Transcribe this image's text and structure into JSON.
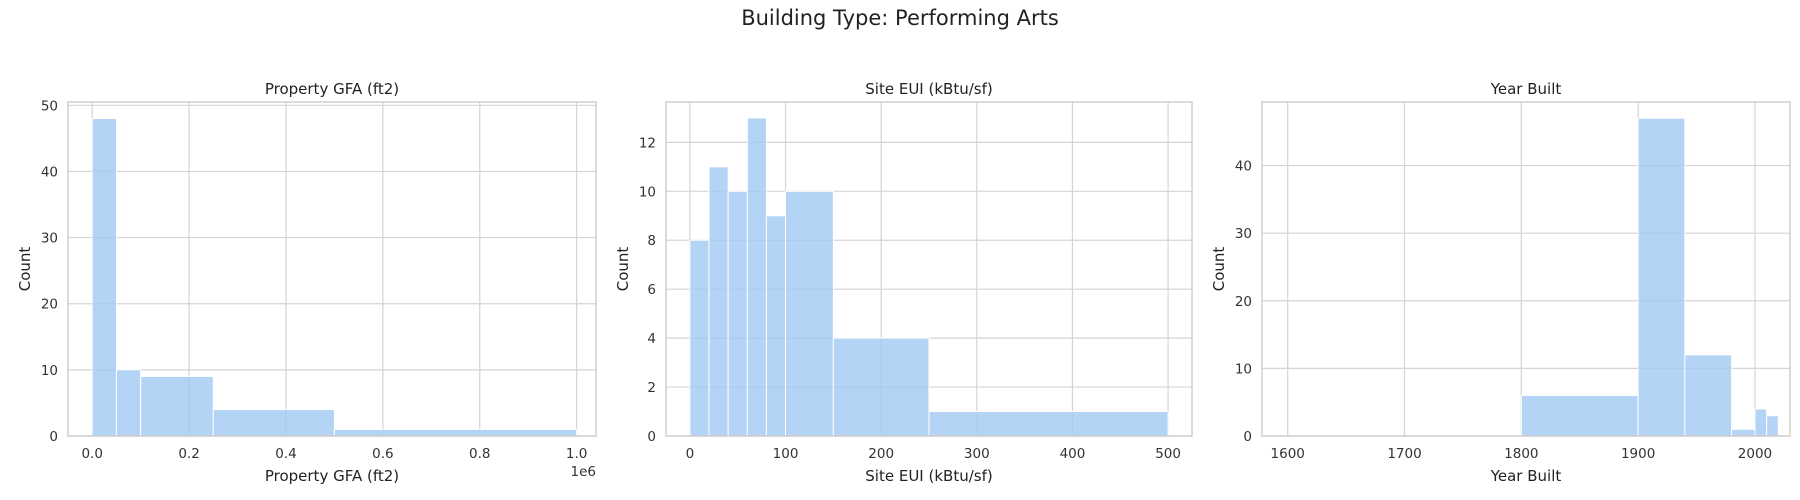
{
  "figure": {
    "title": "Building Type: Performing Arts"
  },
  "chart_data": [
    {
      "type": "bar",
      "subtype": "histogram",
      "title": "Property GFA (ft2)",
      "xlabel": "Property GFA (ft2)",
      "ylabel": "Count",
      "x_offset_label": "1e6",
      "xlim": [
        -0.05,
        1.04
      ],
      "ylim": [
        0,
        50.5
      ],
      "xticks": [
        0.0,
        0.2,
        0.4,
        0.6,
        0.8,
        1.0
      ],
      "xtick_labels": [
        "0.0",
        "0.2",
        "0.4",
        "0.6",
        "0.8",
        "1.0"
      ],
      "yticks": [
        0,
        10,
        20,
        30,
        40,
        50
      ],
      "bins": [
        {
          "x0": 0.0,
          "x1": 0.05,
          "count": 48
        },
        {
          "x0": 0.05,
          "x1": 0.1,
          "count": 10
        },
        {
          "x0": 0.1,
          "x1": 0.25,
          "count": 9
        },
        {
          "x0": 0.25,
          "x1": 0.5,
          "count": 4
        },
        {
          "x0": 0.5,
          "x1": 1.0,
          "count": 1
        }
      ],
      "grid": true,
      "color": "#a1c9f4"
    },
    {
      "type": "bar",
      "subtype": "histogram",
      "title": "Site EUI (kBtu/sf)",
      "xlabel": "Site EUI (kBtu/sf)",
      "ylabel": "Count",
      "xlim": [
        -25,
        525
      ],
      "ylim": [
        0,
        13.65
      ],
      "xticks": [
        0,
        100,
        200,
        300,
        400,
        500
      ],
      "xtick_labels": [
        "0",
        "100",
        "200",
        "300",
        "400",
        "500"
      ],
      "yticks": [
        0,
        2,
        4,
        6,
        8,
        10,
        12
      ],
      "bins": [
        {
          "x0": 0,
          "x1": 20,
          "count": 8
        },
        {
          "x0": 20,
          "x1": 40,
          "count": 11
        },
        {
          "x0": 40,
          "x1": 60,
          "count": 10
        },
        {
          "x0": 60,
          "x1": 80,
          "count": 13
        },
        {
          "x0": 80,
          "x1": 100,
          "count": 9
        },
        {
          "x0": 100,
          "x1": 150,
          "count": 10
        },
        {
          "x0": 150,
          "x1": 250,
          "count": 4
        },
        {
          "x0": 250,
          "x1": 500,
          "count": 1
        }
      ],
      "grid": true,
      "color": "#a1c9f4"
    },
    {
      "type": "bar",
      "subtype": "histogram",
      "title": "Year Built",
      "xlabel": "Year Built",
      "ylabel": "Count",
      "xlim": [
        1578,
        2030
      ],
      "ylim": [
        0,
        49.4
      ],
      "xticks": [
        1600,
        1700,
        1800,
        1900,
        2000
      ],
      "xtick_labels": [
        "1600",
        "1700",
        "1800",
        "1900",
        "2000"
      ],
      "yticks": [
        0,
        10,
        20,
        30,
        40
      ],
      "bins": [
        {
          "x0": 1800,
          "x1": 1900,
          "count": 6
        },
        {
          "x0": 1900,
          "x1": 1940,
          "count": 47
        },
        {
          "x0": 1940,
          "x1": 1980,
          "count": 12
        },
        {
          "x0": 1980,
          "x1": 2000,
          "count": 1
        },
        {
          "x0": 2000,
          "x1": 2010,
          "count": 4
        },
        {
          "x0": 2010,
          "x1": 2020,
          "count": 3
        }
      ],
      "grid": true,
      "color": "#a1c9f4"
    }
  ]
}
